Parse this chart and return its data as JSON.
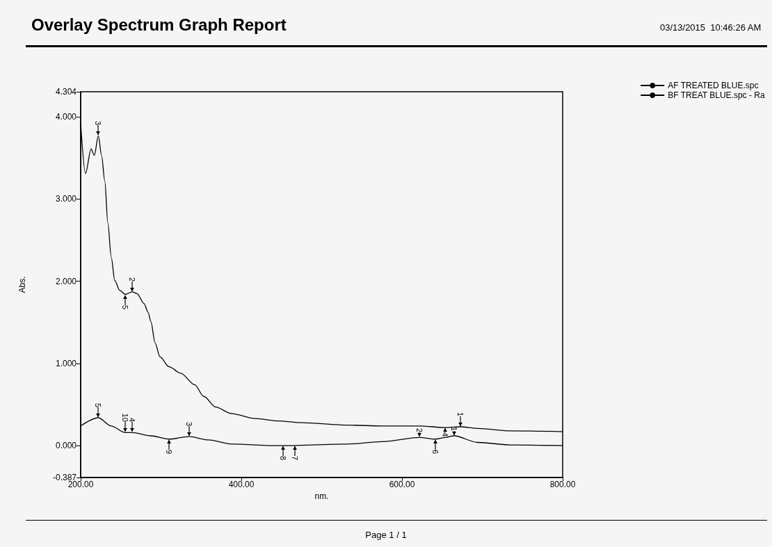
{
  "chart_data": {
    "type": "line",
    "title": "Overlay Spectrum Graph Report",
    "xlabel": "nm.",
    "ylabel": "Abs.",
    "x": [
      200,
      206,
      213,
      217,
      222,
      226,
      230,
      233.8,
      238.1,
      242.4,
      248.5,
      255.4,
      264.1,
      270.1,
      278.8,
      284,
      287.4,
      292.6,
      298.7,
      310,
      324.7,
      342,
      353.2,
      368,
      387.9,
      417.3,
      445.9,
      474.5,
      532.5,
      575.8,
      621.7,
      653.7,
      673,
      694,
      734,
      800
    ],
    "series": [
      {
        "name": "AF TREATED BLUE.spc",
        "color": "#000000",
        "values": [
          3.92,
          3.31,
          3.61,
          3.53,
          3.77,
          3.53,
          3.22,
          2.71,
          2.29,
          2.01,
          1.89,
          1.84,
          1.87,
          1.85,
          1.73,
          1.62,
          1.51,
          1.25,
          1.08,
          0.96,
          0.88,
          0.74,
          0.6,
          0.47,
          0.39,
          0.33,
          0.3,
          0.28,
          0.25,
          0.24,
          0.24,
          0.22,
          0.23,
          0.21,
          0.18,
          0.17
        ]
      },
      {
        "name": "BF TREAT BLUE.spc - Ra",
        "color": "#000000",
        "x": [
          200,
          222,
          238,
          255,
          264,
          287,
          310,
          335,
          359,
          388,
          446,
          532.5,
          575.8,
          621.7,
          641.6,
          653.7,
          665,
          694,
          734,
          800
        ],
        "values": [
          0.24,
          0.34,
          0.24,
          0.16,
          0.16,
          0.12,
          0.08,
          0.11,
          0.07,
          0.02,
          0.0,
          0.02,
          0.05,
          0.1,
          0.08,
          0.1,
          0.12,
          0.04,
          0.01,
          0.0
        ]
      }
    ],
    "xlim": [
      200,
      800
    ],
    "xticks": [
      {
        "value": 200,
        "label": "200.00"
      },
      {
        "value": 400,
        "label": "400.00"
      },
      {
        "value": 600,
        "label": "600.00"
      },
      {
        "value": 800,
        "label": "800.00"
      }
    ],
    "ylim": [
      -0.387,
      4.304
    ],
    "yticks": [
      {
        "value": -0.387,
        "label": "-0.387"
      },
      {
        "value": 0,
        "label": "0.000"
      },
      {
        "value": 1,
        "label": "1.000"
      },
      {
        "value": 2,
        "label": "2.000"
      },
      {
        "value": 3,
        "label": "3.000"
      },
      {
        "value": 4,
        "label": "4.000"
      },
      {
        "value": 4.304,
        "label": "4.304"
      }
    ],
    "grid": false,
    "legend": "top right",
    "marker": "none",
    "line_style": "solid",
    "annotations": [
      "03/13/2015  10:46:26 AM",
      "Page 1 / 1",
      {
        "text": "3",
        "x": 222,
        "y": 3.77
      },
      {
        "text": "2",
        "x": 264.1,
        "y": 1.87
      },
      {
        "text": "5",
        "x": 255.4,
        "y": 1.84
      },
      {
        "text": "1",
        "x": 673,
        "y": 0.23
      },
      {
        "text": "5",
        "x": 222,
        "y": 0.34
      },
      {
        "text": "4",
        "x": 264,
        "y": 0.16
      },
      {
        "text": "10",
        "x": 255,
        "y": 0.16
      },
      {
        "text": "3",
        "x": 335,
        "y": 0.11
      },
      {
        "text": "9",
        "x": 310,
        "y": 0.08
      },
      {
        "text": "8",
        "x": 452,
        "y": 0.0
      },
      {
        "text": "7",
        "x": 467,
        "y": 0.0
      },
      {
        "text": "2",
        "x": 621.7,
        "y": 0.1
      },
      {
        "text": "6",
        "x": 641.6,
        "y": 0.08
      },
      {
        "text": "4",
        "x": 653.7,
        "y": 0.22
      },
      {
        "text": "1",
        "x": 665,
        "y": 0.12
      }
    ]
  }
}
